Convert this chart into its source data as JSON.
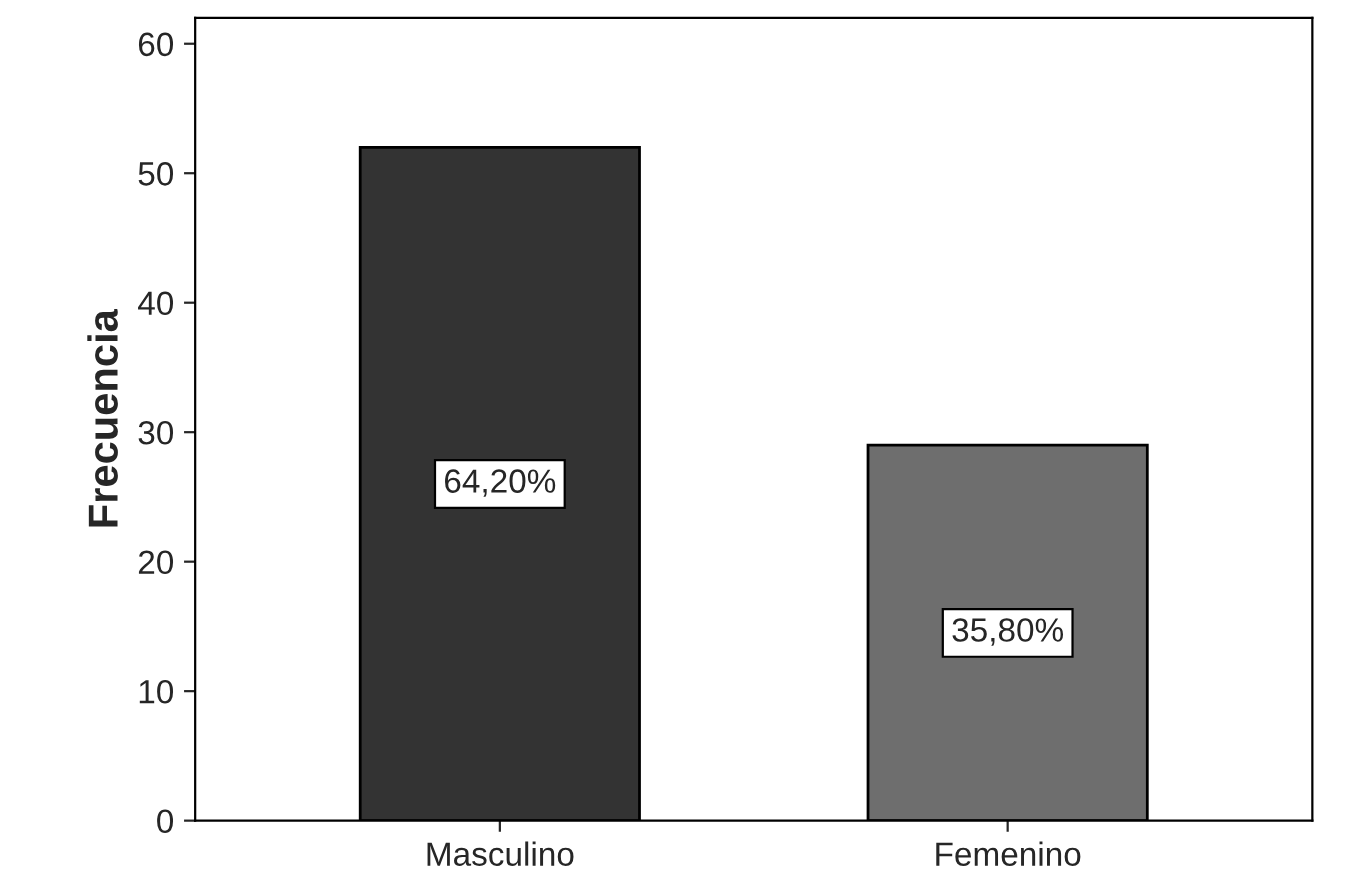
{
  "chart_data": {
    "type": "bar",
    "ylabel": "Frecuencia",
    "categories": [
      "Masculino",
      "Femenino"
    ],
    "values": [
      52,
      29
    ],
    "colors": [
      "#333333",
      "#6e6e6e"
    ],
    "annotations": [
      "64,20%",
      "35,80%"
    ],
    "ylim": [
      0,
      62
    ],
    "yticks": [
      0,
      10,
      20,
      30,
      40,
      50,
      60
    ],
    "grid": false
  }
}
